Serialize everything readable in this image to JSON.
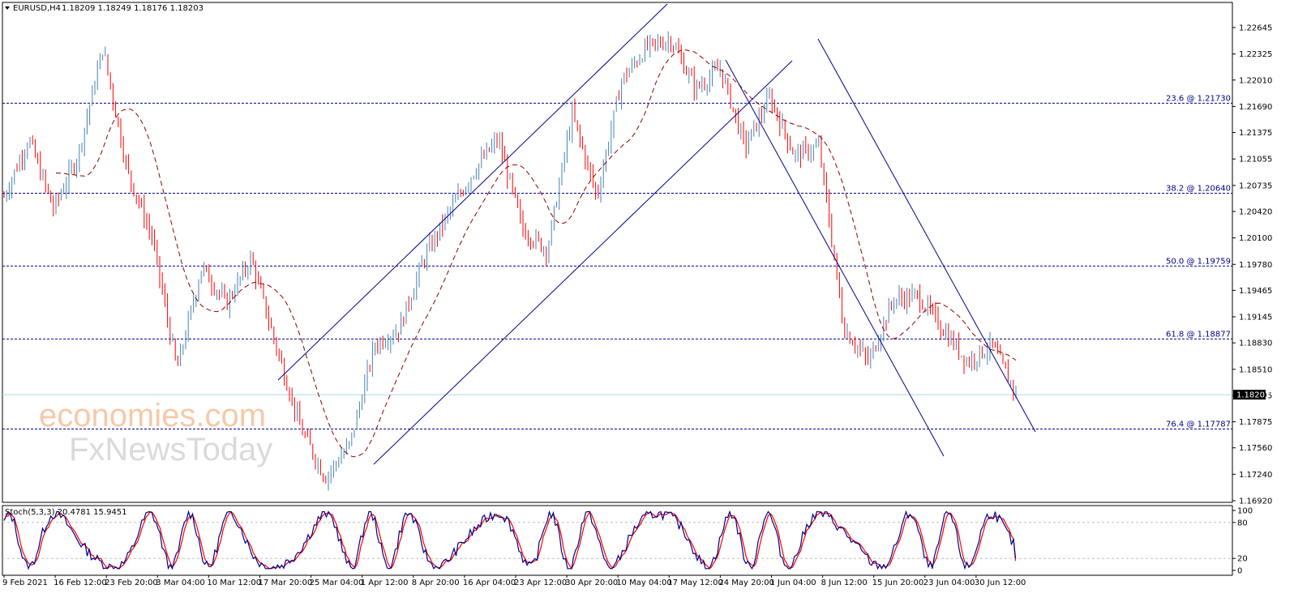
{
  "header": {
    "symbol": "EURUSD,H4",
    "ohlc": "1.18209 1.18249 1.18176 1.18203"
  },
  "watermark": {
    "line1": "economies.com",
    "line2": "FxNewsToday"
  },
  "colors": {
    "bull": "#4682b4",
    "bear": "#ff0000",
    "ma": "#8b0000",
    "channel": "#00008b",
    "fib": "#00008b",
    "current_line": "#add8e6",
    "stoch_main": "#00008b",
    "stoch_signal": "#ff0000"
  },
  "chart_data": [
    {
      "type": "candlestick",
      "instrument": "EURUSD",
      "timeframe": "H4",
      "title": "EURUSD,H4",
      "last_price": "1.18203",
      "ylim": [
        1.1692,
        1.229
      ],
      "y_ticks": [
        "1.22645",
        "1.22325",
        "1.22010",
        "1.21690",
        "1.21375",
        "1.21055",
        "1.20735",
        "1.20420",
        "1.20100",
        "1.19780",
        "1.19465",
        "1.19145",
        "1.18830",
        "1.18510",
        "1.18195",
        "1.17875",
        "1.17560",
        "1.17240",
        "1.16920"
      ],
      "x_ticks": [
        "9 Feb 2021",
        "16 Feb 12:00",
        "23 Feb 20:00",
        "3 Mar 04:00",
        "10 Mar 12:00",
        "17 Mar 20:00",
        "25 Mar 04:00",
        "1 Apr 12:00",
        "8 Apr 20:00",
        "16 Apr 04:00",
        "23 Apr 12:00",
        "30 Apr 20:00",
        "10 May 04:00",
        "17 May 12:00",
        "24 May 20:00",
        "1 Jun 04:00",
        "8 Jun 12:00",
        "15 Jun 20:00",
        "23 Jun 04:00",
        "30 Jun 12:00"
      ],
      "price_path": [
        {
          "x": "9 Feb 2021",
          "y": 1.206
        },
        {
          "x": "11 Feb",
          "y": 1.213
        },
        {
          "x": "16 Feb 12:00",
          "y": 1.2045
        },
        {
          "x": "18 Feb",
          "y": 1.211
        },
        {
          "x": "23 Feb 20:00",
          "y": 1.224
        },
        {
          "x": "26 Feb",
          "y": 1.209
        },
        {
          "x": "3 Mar 04:00",
          "y": 1.201
        },
        {
          "x": "9 Mar",
          "y": 1.185
        },
        {
          "x": "10 Mar 12:00",
          "y": 1.1975
        },
        {
          "x": "16 Mar",
          "y": 1.193
        },
        {
          "x": "17 Mar 20:00",
          "y": 1.1985
        },
        {
          "x": "19 Mar",
          "y": 1.188
        },
        {
          "x": "25 Mar 04:00",
          "y": 1.178
        },
        {
          "x": "31 Mar",
          "y": 1.172
        },
        {
          "x": "1 Apr 12:00",
          "y": 1.176
        },
        {
          "x": "6 Apr",
          "y": 1.188
        },
        {
          "x": "8 Apr 20:00",
          "y": 1.19
        },
        {
          "x": "14 Apr",
          "y": 1.1985
        },
        {
          "x": "16 Apr 04:00",
          "y": 1.204
        },
        {
          "x": "23 Apr 12:00",
          "y": 1.209
        },
        {
          "x": "28 Apr",
          "y": 1.213
        },
        {
          "x": "30 Apr 20:00",
          "y": 1.202
        },
        {
          "x": "5 May",
          "y": 1.1995
        },
        {
          "x": "10 May 04:00",
          "y": 1.216
        },
        {
          "x": "13 May",
          "y": 1.206
        },
        {
          "x": "17 May 12:00",
          "y": 1.22
        },
        {
          "x": "19 May",
          "y": 1.224
        },
        {
          "x": "24 May 20:00",
          "y": 1.225
        },
        {
          "x": "26 May",
          "y": 1.219
        },
        {
          "x": "1 Jun 04:00",
          "y": 1.2215
        },
        {
          "x": "4 Jun",
          "y": 1.212
        },
        {
          "x": "8 Jun 12:00",
          "y": 1.218
        },
        {
          "x": "11 Jun",
          "y": 1.211
        },
        {
          "x": "15 Jun 20:00",
          "y": 1.212
        },
        {
          "x": "17 Jun",
          "y": 1.19
        },
        {
          "x": "18 Jun",
          "y": 1.186
        },
        {
          "x": "23 Jun 04:00",
          "y": 1.1935
        },
        {
          "x": "25 Jun",
          "y": 1.194
        },
        {
          "x": "28 Jun",
          "y": 1.19
        },
        {
          "x": "30 Jun 12:00",
          "y": 1.186
        },
        {
          "x": "2 Jul",
          "y": 1.188
        },
        {
          "x": "5 Jul",
          "y": 1.182
        }
      ],
      "fibonacci_levels": [
        {
          "label": "23.6 @ 1.21730",
          "value": 1.2173
        },
        {
          "label": "38.2 @ 1.20640",
          "value": 1.2064
        },
        {
          "label": "50.0 @ 1.19759",
          "value": 1.19759
        },
        {
          "label": "61.8 @ 1.18877",
          "value": 1.18877
        },
        {
          "label": "76.4 @ 1.17787",
          "value": 1.17787
        }
      ],
      "indicators": [
        "Moving average (dashed)",
        "Ascending channel",
        "Descending channel"
      ]
    },
    {
      "type": "line",
      "title": "Stoch(5,3,3) 20.4781 15.9451",
      "ylim": [
        0,
        100
      ],
      "y_ticks": [
        "100",
        "80",
        "20",
        "0"
      ],
      "levels": [
        80,
        20
      ],
      "series": [
        {
          "name": "Stoch main",
          "last": 20.4781
        },
        {
          "name": "Stoch signal",
          "last": 15.9451
        }
      ]
    }
  ]
}
